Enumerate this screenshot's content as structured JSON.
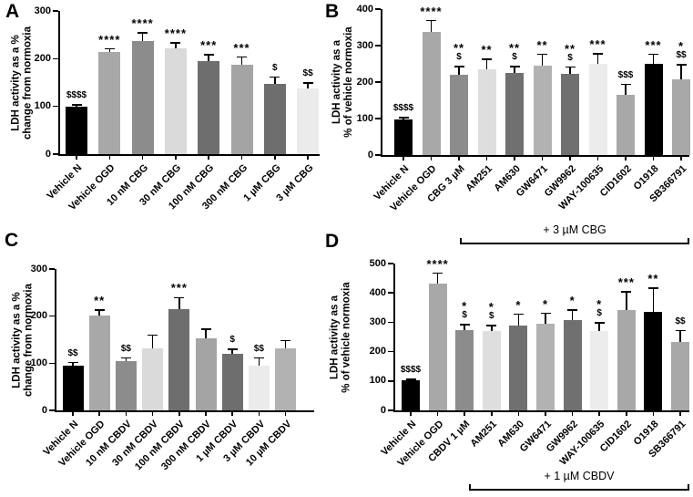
{
  "figure": {
    "background": "#ffffff",
    "panels": [
      "A",
      "B",
      "C",
      "D"
    ],
    "axis_color": "#000000",
    "error_bar_color": "#000000"
  },
  "chart_data": [
    {
      "panel": "A",
      "type": "bar",
      "title": "",
      "ylabel_lines": [
        "LDH activity as a %",
        "change from normoxia"
      ],
      "ylim": [
        0,
        300
      ],
      "yticks": [
        0,
        100,
        200,
        300
      ],
      "grid": false,
      "categories": [
        "Vehicle N",
        "Vehicle OGD",
        "10 nM CBG",
        "30 nM CBG",
        "100 nM CBG",
        "300 nM CBG",
        "1 µM CBG",
        "3 µM CBG"
      ],
      "values": [
        100,
        214,
        237,
        222,
        194,
        188,
        148,
        137
      ],
      "errors": [
        5,
        8,
        19,
        13,
        16,
        17,
        15,
        14
      ],
      "bar_colors": [
        "#000000",
        "#a8a8a8",
        "#8c8c8c",
        "#dadada",
        "#6e6e6e",
        "#a4a4a4",
        "#6e6e6e",
        "#ebebeb"
      ],
      "significance": [
        [
          "$$$$"
        ],
        [
          "****"
        ],
        [
          "****"
        ],
        [
          "****"
        ],
        [
          "***"
        ],
        [
          "***"
        ],
        [
          "$"
        ],
        [
          "$$"
        ]
      ]
    },
    {
      "panel": "B",
      "type": "bar",
      "title": "",
      "ylabel_lines": [
        "LDH activity as a",
        "% of vehicle normoxia"
      ],
      "ylim": [
        0,
        400
      ],
      "yticks": [
        0,
        100,
        200,
        300,
        400
      ],
      "grid": false,
      "categories": [
        "Vehicle N",
        "Vehicle OGD",
        "CBG 3 µM",
        "AM251",
        "AM630",
        "GW6471",
        "GW9962",
        "WAY-100635",
        "CID1602",
        "O1918",
        "SB366791"
      ],
      "values": [
        97,
        338,
        221,
        234,
        226,
        246,
        222,
        251,
        166,
        250,
        207
      ],
      "errors": [
        8,
        33,
        24,
        30,
        19,
        32,
        21,
        28,
        30,
        28,
        42
      ],
      "bar_colors": [
        "#000000",
        "#a8a8a8",
        "#8c8c8c",
        "#dedede",
        "#707070",
        "#b2b2b2",
        "#707070",
        "#ececec",
        "#a8a8a8",
        "#000000",
        "#a8a8a8"
      ],
      "significance": [
        [
          "$$$$"
        ],
        [
          "****"
        ],
        [
          "**",
          "$"
        ],
        [
          "**"
        ],
        [
          "**",
          "$"
        ],
        [
          "**"
        ],
        [
          "**",
          "$"
        ],
        [
          "***"
        ],
        [
          "$$$"
        ],
        [
          "***"
        ],
        [
          "*",
          "$$"
        ]
      ],
      "treatment_bracket": {
        "label": "+ 3 µM CBG",
        "spans_categories": [
          "AM251",
          "SB366791"
        ]
      }
    },
    {
      "panel": "C",
      "type": "bar",
      "title": "",
      "ylabel_lines": [
        "LDH activity as a %",
        "change from normoxia"
      ],
      "ylim": [
        0,
        300
      ],
      "yticks": [
        0,
        100,
        200,
        300
      ],
      "grid": false,
      "categories": [
        "Vehicle N",
        "Vehicle OGD",
        "10 nM CBDV",
        "30 nM CBDV",
        "100 nM CBDV",
        "300 nM CBDV",
        "1 µM CBDV",
        "3 µM CBDV",
        "10 µM CBDV"
      ],
      "values": [
        94,
        201,
        105,
        132,
        214,
        153,
        120,
        95,
        131
      ],
      "errors": [
        9,
        13,
        8,
        29,
        27,
        21,
        11,
        18,
        19
      ],
      "bar_colors": [
        "#000000",
        "#a8a8a8",
        "#8c8c8c",
        "#dadada",
        "#6e6e6e",
        "#a4a4a4",
        "#6e6e6e",
        "#ebebeb",
        "#b2b2b2"
      ],
      "significance": [
        [
          "$$"
        ],
        [
          "**"
        ],
        [
          "$$"
        ],
        [],
        [
          "***"
        ],
        [],
        [
          "$"
        ],
        [
          "$$"
        ],
        []
      ]
    },
    {
      "panel": "D",
      "type": "bar",
      "title": "",
      "ylabel_lines": [
        "LDH activity as a",
        "% of vehicle normoxia"
      ],
      "ylim": [
        0,
        500
      ],
      "yticks": [
        0,
        100,
        200,
        300,
        400,
        500
      ],
      "grid": false,
      "categories": [
        "Vehicle N",
        "Vehicle OGD",
        "CBDV 1 µM",
        "AM251",
        "AM630",
        "GW6471",
        "GW9962",
        "WAY-100635",
        "CID1602",
        "O1918",
        "SB366791"
      ],
      "values": [
        103,
        431,
        274,
        269,
        288,
        294,
        308,
        269,
        343,
        337,
        233
      ],
      "errors": [
        5,
        39,
        21,
        23,
        42,
        39,
        36,
        32,
        63,
        82,
        41
      ],
      "bar_colors": [
        "#000000",
        "#a8a8a8",
        "#8c8c8c",
        "#dedede",
        "#707070",
        "#b2b2b2",
        "#707070",
        "#ececec",
        "#a8a8a8",
        "#000000",
        "#a8a8a8"
      ],
      "significance": [
        [
          "$$$$"
        ],
        [
          "****"
        ],
        [
          "*",
          "$"
        ],
        [
          "*",
          "$"
        ],
        [
          "*"
        ],
        [
          "*"
        ],
        [
          "*"
        ],
        [
          "*",
          "$"
        ],
        [
          "***"
        ],
        [
          "**"
        ],
        [
          "$$"
        ]
      ],
      "treatment_bracket": {
        "label": "+ 1 µM CBDV",
        "spans_categories": [
          "AM251",
          "SB366791"
        ]
      }
    }
  ]
}
